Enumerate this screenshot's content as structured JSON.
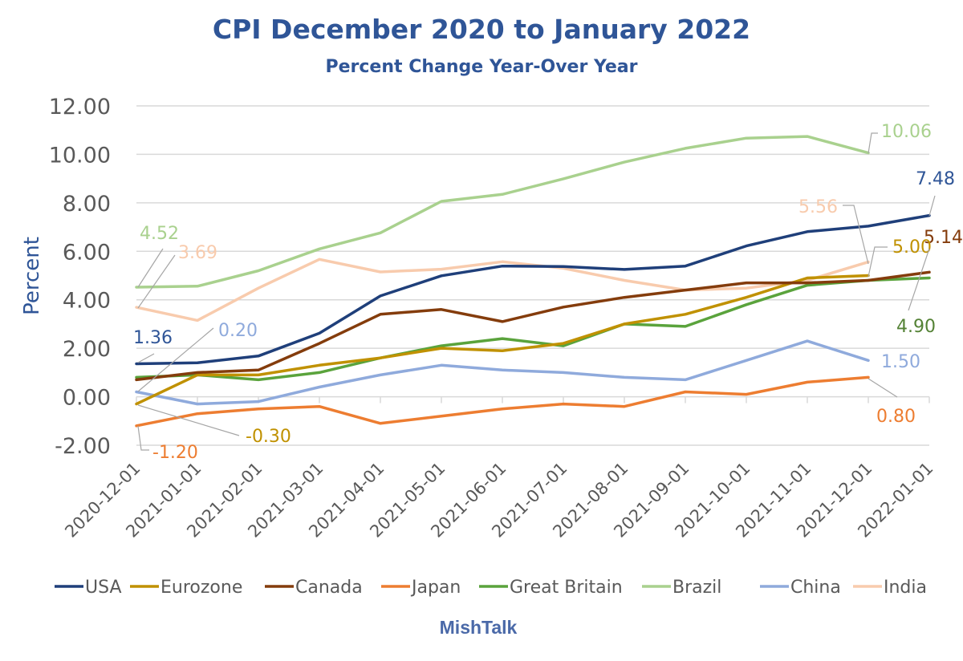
{
  "chart_data": {
    "type": "line",
    "title": "CPI December 2020 to January 2022",
    "subtitle": "Percent Change Year-Over Year",
    "xlabel": "",
    "ylabel": "Percent",
    "footer": "MishTalk",
    "ylim": [
      -2,
      12
    ],
    "yticks": [
      -2,
      0,
      2,
      4,
      6,
      8,
      10,
      12
    ],
    "ytick_labels": [
      "-2.00",
      "0.00",
      "2.00",
      "4.00",
      "6.00",
      "8.00",
      "10.00",
      "12.00"
    ],
    "grid": true,
    "legend_position": "bottom",
    "x": [
      "2020-12-01",
      "2021-01-01",
      "2021-02-01",
      "2021-03-01",
      "2021-04-01",
      "2021-05-01",
      "2021-06-01",
      "2021-07-01",
      "2021-08-01",
      "2021-09-01",
      "2021-10-01",
      "2021-11-01",
      "2021-12-01",
      "2022-01-01"
    ],
    "series": [
      {
        "name": "USA",
        "color": "#1f3f7a",
        "values": [
          1.36,
          1.4,
          1.68,
          2.62,
          4.16,
          4.99,
          5.39,
          5.37,
          5.25,
          5.39,
          6.22,
          6.81,
          7.04,
          7.48
        ]
      },
      {
        "name": "Eurozone",
        "color": "#c09100",
        "values": [
          -0.3,
          0.9,
          0.9,
          1.3,
          1.6,
          2.0,
          1.9,
          2.2,
          3.0,
          3.4,
          4.1,
          4.9,
          5.0
        ]
      },
      {
        "name": "Canada",
        "color": "#843c0c",
        "values": [
          0.7,
          1.0,
          1.1,
          2.2,
          3.4,
          3.6,
          3.1,
          3.7,
          4.1,
          4.4,
          4.7,
          4.7,
          4.8,
          5.14
        ]
      },
      {
        "name": "Japan",
        "color": "#ed7d31",
        "values": [
          -1.2,
          -0.7,
          -0.5,
          -0.4,
          -1.1,
          -0.8,
          -0.5,
          -0.3,
          -0.4,
          0.2,
          0.1,
          0.6,
          0.8
        ]
      },
      {
        "name": "Great Britain",
        "color": "#5aa33c",
        "values": [
          0.8,
          0.9,
          0.7,
          1.0,
          1.6,
          2.1,
          2.4,
          2.1,
          3.0,
          2.9,
          3.8,
          4.6,
          4.8,
          4.9
        ]
      },
      {
        "name": "Brazil",
        "color": "#a9d18e",
        "values": [
          4.52,
          4.56,
          5.2,
          6.1,
          6.76,
          8.06,
          8.35,
          8.99,
          9.68,
          10.25,
          10.67,
          10.74,
          10.06
        ]
      },
      {
        "name": "China",
        "color": "#8faadc",
        "values": [
          0.2,
          -0.3,
          -0.2,
          0.4,
          0.9,
          1.3,
          1.1,
          1.0,
          0.8,
          0.7,
          1.5,
          2.3,
          1.5
        ]
      },
      {
        "name": "India",
        "color": "#f8cbad",
        "values": [
          3.69,
          3.15,
          4.48,
          5.67,
          5.15,
          5.26,
          5.57,
          5.3,
          4.8,
          4.4,
          4.48,
          4.8,
          5.56
        ]
      }
    ],
    "data_labels": [
      {
        "series": "Brazil",
        "point": 0,
        "text": "4.52",
        "color": "#a9d18e"
      },
      {
        "series": "India",
        "point": 0,
        "text": "3.69",
        "color": "#f8cbad"
      },
      {
        "series": "USA",
        "point": 0,
        "text": "1.36",
        "color": "#2f5597"
      },
      {
        "series": "China",
        "point": 0,
        "text": "0.20",
        "color": "#8faadc"
      },
      {
        "series": "Eurozone",
        "point": 0,
        "text": "-0.30",
        "color": "#c09100"
      },
      {
        "series": "Japan",
        "point": 0,
        "text": "-1.20",
        "color": "#ed7d31"
      },
      {
        "series": "Brazil",
        "point": 12,
        "text": "10.06",
        "color": "#a9d18e"
      },
      {
        "series": "USA",
        "point": 13,
        "text": "7.48",
        "color": "#2f5597"
      },
      {
        "series": "India",
        "point": 12,
        "text": "5.56",
        "color": "#f8cbad"
      },
      {
        "series": "Canada",
        "point": 13,
        "text": "5.14",
        "color": "#843c0c"
      },
      {
        "series": "Eurozone",
        "point": 12,
        "text": "5.00",
        "color": "#c09100"
      },
      {
        "series": "Great Britain",
        "point": 13,
        "text": "4.90",
        "color": "#548235"
      },
      {
        "series": "China",
        "point": 12,
        "text": "1.50",
        "color": "#8faadc"
      },
      {
        "series": "Japan",
        "point": 12,
        "text": "0.80",
        "color": "#ed7d31"
      }
    ]
  }
}
